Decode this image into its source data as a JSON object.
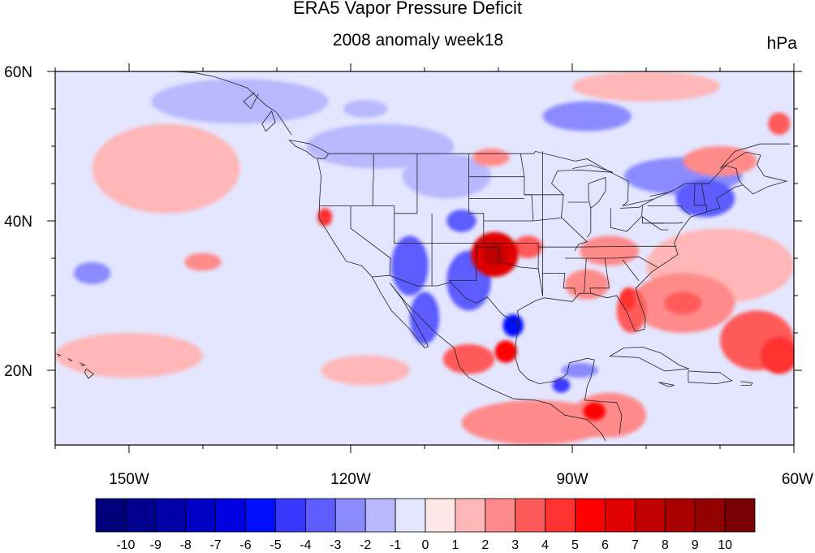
{
  "title": "ERA5 Vapor Pressure Deficit",
  "subtitle": "2008 anomaly week18",
  "units": "hPa",
  "chart_data": {
    "type": "heatmap",
    "projection": "lat-lon",
    "lon_range": [
      -160,
      -60
    ],
    "lat_range": [
      10,
      60
    ],
    "x_ticks": [
      {
        "value": -150,
        "label": "150W"
      },
      {
        "value": -120,
        "label": "120W"
      },
      {
        "value": -90,
        "label": "90W"
      },
      {
        "value": -60,
        "label": "60W"
      }
    ],
    "y_ticks": [
      {
        "value": 60,
        "label": "60N"
      },
      {
        "value": 40,
        "label": "40N"
      },
      {
        "value": 20,
        "label": "20N"
      }
    ],
    "colorbar": {
      "labels": [
        "-10",
        "-9",
        "-8",
        "-7",
        "-6",
        "-5",
        "-4",
        "-3",
        "-2",
        "-1",
        "0",
        "1",
        "2",
        "3",
        "4",
        "5",
        "6",
        "7",
        "8",
        "9",
        "10"
      ],
      "colors": [
        "#00007a",
        "#00008f",
        "#0000a8",
        "#0000c4",
        "#0000e0",
        "#0010ff",
        "#3838ff",
        "#5c5cff",
        "#8b8bff",
        "#b8b8ff",
        "#e4e6ff",
        "#ffe6e6",
        "#ffb6b6",
        "#ff8a8a",
        "#ff5a5a",
        "#ff3232",
        "#ff0000",
        "#e00000",
        "#c00000",
        "#a80000",
        "#920000",
        "#780000"
      ]
    },
    "anomaly_regions": [
      {
        "lon": -100.5,
        "lat": 35.5,
        "rlon": 3.2,
        "rlat": 3.0,
        "value": 6
      },
      {
        "lon": -100.5,
        "lat": 35.5,
        "rlon": 1.6,
        "rlat": 1.6,
        "value": 7
      },
      {
        "lon": -104,
        "lat": 32,
        "rlon": 3,
        "rlat": 4,
        "value": -3
      },
      {
        "lon": -112,
        "lat": 34,
        "rlon": 2.5,
        "rlat": 4,
        "value": -3
      },
      {
        "lon": -110,
        "lat": 27,
        "rlon": 2,
        "rlat": 3.5,
        "value": -3
      },
      {
        "lon": -98,
        "lat": 26,
        "rlon": 1.4,
        "rlat": 1.5,
        "value": -5
      },
      {
        "lon": -99,
        "lat": 22.5,
        "rlon": 1.5,
        "rlat": 1.5,
        "value": 5
      },
      {
        "lon": -104,
        "lat": 21.5,
        "rlon": 3.5,
        "rlat": 2,
        "value": 3
      },
      {
        "lon": -87,
        "lat": 14.5,
        "rlon": 1.5,
        "rlat": 1.2,
        "value": 5
      },
      {
        "lon": -85,
        "lat": 14,
        "rlon": 5,
        "rlat": 3,
        "value": 2
      },
      {
        "lon": -123.5,
        "lat": 40.5,
        "rlon": 1,
        "rlat": 1.2,
        "value": 4
      },
      {
        "lon": -105,
        "lat": 40,
        "rlon": 2,
        "rlat": 1.5,
        "value": -3
      },
      {
        "lon": -101,
        "lat": 48.5,
        "rlon": 2.5,
        "rlat": 1.2,
        "value": 2
      },
      {
        "lon": -75,
        "lat": 29,
        "rlon": 7,
        "rlat": 4,
        "value": 2
      },
      {
        "lon": -75,
        "lat": 29,
        "rlon": 2.5,
        "rlat": 1.5,
        "value": 3
      },
      {
        "lon": -65,
        "lat": 24,
        "rlon": 5,
        "rlat": 4,
        "value": 3
      },
      {
        "lon": -62,
        "lat": 22,
        "rlon": 2.5,
        "rlat": 2.5,
        "value": 4
      },
      {
        "lon": -82,
        "lat": 28,
        "rlon": 2,
        "rlat": 3,
        "value": 3
      },
      {
        "lon": -82.5,
        "lat": 29.5,
        "rlon": 1,
        "rlat": 1.5,
        "value": 4
      },
      {
        "lon": -85,
        "lat": 36,
        "rlon": 4,
        "rlat": 2,
        "value": 2
      },
      {
        "lon": -72,
        "lat": 43,
        "rlon": 4,
        "rlat": 2.5,
        "value": -3
      },
      {
        "lon": -75,
        "lat": 46,
        "rlon": 8,
        "rlat": 2.5,
        "value": -2
      },
      {
        "lon": -88,
        "lat": 54,
        "rlon": 6,
        "rlat": 2,
        "value": -2
      },
      {
        "lon": -70,
        "lat": 48,
        "rlon": 5,
        "rlat": 2,
        "value": 2
      },
      {
        "lon": -62,
        "lat": 53,
        "rlon": 1.5,
        "rlat": 1.5,
        "value": 3
      },
      {
        "lon": -155,
        "lat": 33,
        "rlon": 2.5,
        "rlat": 1.5,
        "value": -2
      },
      {
        "lon": -140,
        "lat": 34.5,
        "rlon": 2.5,
        "rlat": 1.2,
        "value": 2
      },
      {
        "lon": -118,
        "lat": 55,
        "rlon": 3,
        "rlat": 1.2,
        "value": -1
      },
      {
        "lon": -89,
        "lat": 20,
        "rlon": 2.5,
        "rlat": 1,
        "value": -2
      },
      {
        "lon": -91.5,
        "lat": 18,
        "rlon": 1.2,
        "rlat": 1,
        "value": -4
      },
      {
        "lon": -88,
        "lat": 31.5,
        "rlon": 3,
        "rlat": 2,
        "value": 2
      },
      {
        "lon": -96,
        "lat": 36.5,
        "rlon": 2,
        "rlat": 1.5,
        "value": 3
      },
      {
        "lon": -95,
        "lat": 13,
        "rlon": 10,
        "rlat": 3,
        "value": 2
      },
      {
        "lon": -145,
        "lat": 47,
        "rlon": 10,
        "rlat": 6,
        "value": 1
      },
      {
        "lon": -150,
        "lat": 22,
        "rlon": 10,
        "rlat": 3,
        "value": 1
      },
      {
        "lon": -135,
        "lat": 56,
        "rlon": 12,
        "rlat": 3,
        "value": -1
      },
      {
        "lon": -116,
        "lat": 50,
        "rlon": 10,
        "rlat": 3,
        "value": -1
      },
      {
        "lon": -70,
        "lat": 34,
        "rlon": 10,
        "rlat": 5,
        "value": 1
      },
      {
        "lon": -80,
        "lat": 58,
        "rlon": 10,
        "rlat": 2,
        "value": 1
      },
      {
        "lon": -118,
        "lat": 20,
        "rlon": 6,
        "rlat": 2,
        "value": 1
      },
      {
        "lon": -107,
        "lat": 46,
        "rlon": 6,
        "rlat": 3,
        "value": -1
      }
    ]
  }
}
